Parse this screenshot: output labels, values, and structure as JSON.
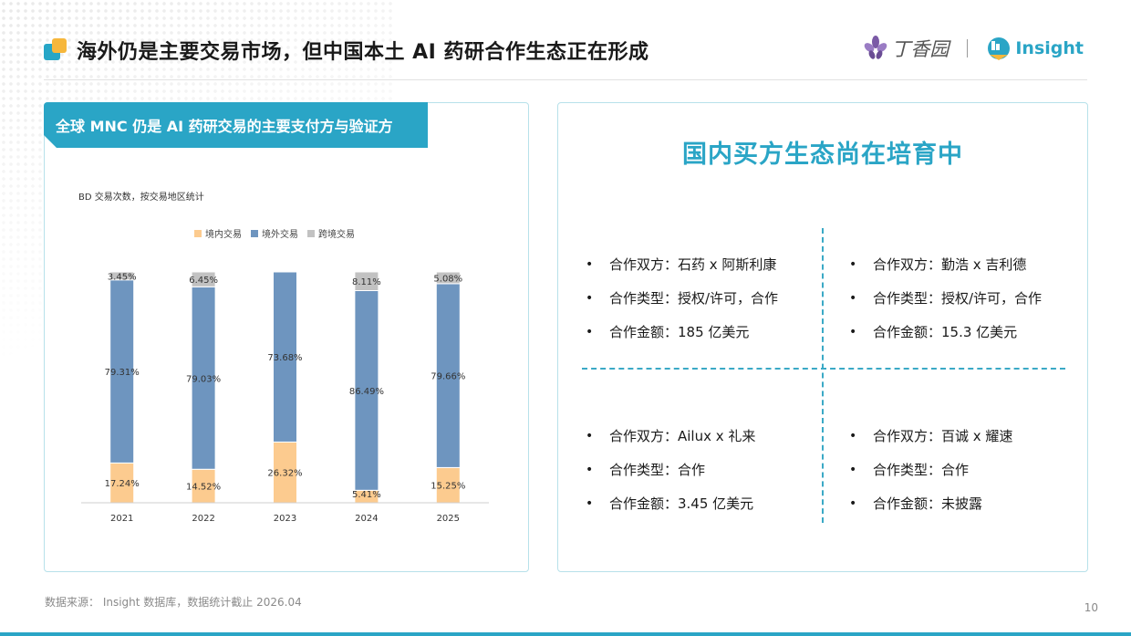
{
  "header": {
    "title": "海外仍是主要交易市场，但中国本土 AI 药研合作生态正在形成",
    "brand_dxy": "丁香园",
    "brand_insight": "Insight"
  },
  "left_panel": {
    "heading": "全球 MNC 仍是 AI 药研交易的主要支付方与验证方"
  },
  "chart_data": {
    "type": "bar",
    "stacked": true,
    "subtitle": "BD 交易次数，按交易地区统计",
    "categories": [
      "2021",
      "2022",
      "2023",
      "2024",
      "2025"
    ],
    "series": [
      {
        "name": "境内交易",
        "color": "#fccb8f",
        "values": [
          17.24,
          14.52,
          26.32,
          5.41,
          15.25
        ],
        "labels": [
          "17.24%",
          "14.52%",
          "26.32%",
          "5.41%",
          "15.25%"
        ]
      },
      {
        "name": "境外交易",
        "color": "#6e95bf",
        "values": [
          79.31,
          79.03,
          73.68,
          86.49,
          79.66
        ],
        "labels": [
          "79.31%",
          "79.03%",
          "73.68%",
          "86.49%",
          "79.66%"
        ]
      },
      {
        "name": "跨境交易",
        "color": "#c2c2c2",
        "values": [
          3.45,
          6.45,
          0,
          8.11,
          5.08
        ],
        "labels": [
          "3.45%",
          "6.45%",
          "",
          "8.11%",
          "5.08%"
        ]
      }
    ],
    "ylim": [
      0,
      100
    ],
    "legend_position": "top",
    "grid": false
  },
  "right_panel": {
    "title": "国内买方生态尚在培育中",
    "bullet": "•",
    "deals": [
      {
        "partner": "合作双方：石药 x 阿斯利康",
        "type": "合作类型：授权/许可，合作",
        "amount": "合作金额：185 亿美元"
      },
      {
        "partner": "合作双方：勤浩 x 吉利德",
        "type": "合作类型：授权/许可，合作",
        "amount": "合作金额：15.3 亿美元"
      },
      {
        "partner": "合作双方：Ailux x 礼来",
        "type": "合作类型：合作",
        "amount": "合作金额：3.45 亿美元"
      },
      {
        "partner": "合作双方：百诚 x 耀速",
        "type": "合作类型：合作",
        "amount": "合作金额：未披露"
      }
    ]
  },
  "footer": {
    "source": "数据来源： Insight 数据库，数据统计截止 2026.04",
    "page_number": "10"
  },
  "colors": {
    "accent": "#2aa5c6",
    "accent_orange": "#f6b73c"
  }
}
